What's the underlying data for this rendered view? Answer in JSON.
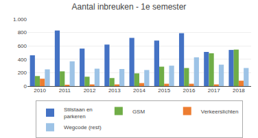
{
  "chart_data": {
    "type": "bar",
    "title": "Aantal inbreuken - 1e semester",
    "categories": [
      "2010",
      "2011",
      "2012",
      "2013",
      "2014",
      "2015",
      "2016",
      "2017",
      "2018"
    ],
    "series": [
      {
        "name": "Stilstaan en\nparkeren",
        "color": "#4472C4",
        "values": [
          460,
          830,
          560,
          620,
          720,
          680,
          790,
          510,
          540
        ]
      },
      {
        "name": "GSM",
        "color": "#70AD47",
        "values": [
          150,
          220,
          140,
          120,
          190,
          290,
          270,
          490,
          545
        ]
      },
      {
        "name": "Verkeerslichten",
        "color": "#ED7D31",
        "values": [
          110,
          20,
          25,
          25,
          45,
          35,
          35,
          25,
          80
        ]
      },
      {
        "name": "Wegcode (rest)",
        "color": "#9DC3E6",
        "values": [
          250,
          370,
          260,
          255,
          240,
          305,
          430,
          320,
          270
        ]
      }
    ],
    "ylim": [
      0,
      1000
    ],
    "yticks": [
      0,
      200,
      400,
      600,
      800,
      {
        "value": 1000,
        "label": "1.000"
      }
    ],
    "grid": true,
    "legend": "bottom"
  }
}
